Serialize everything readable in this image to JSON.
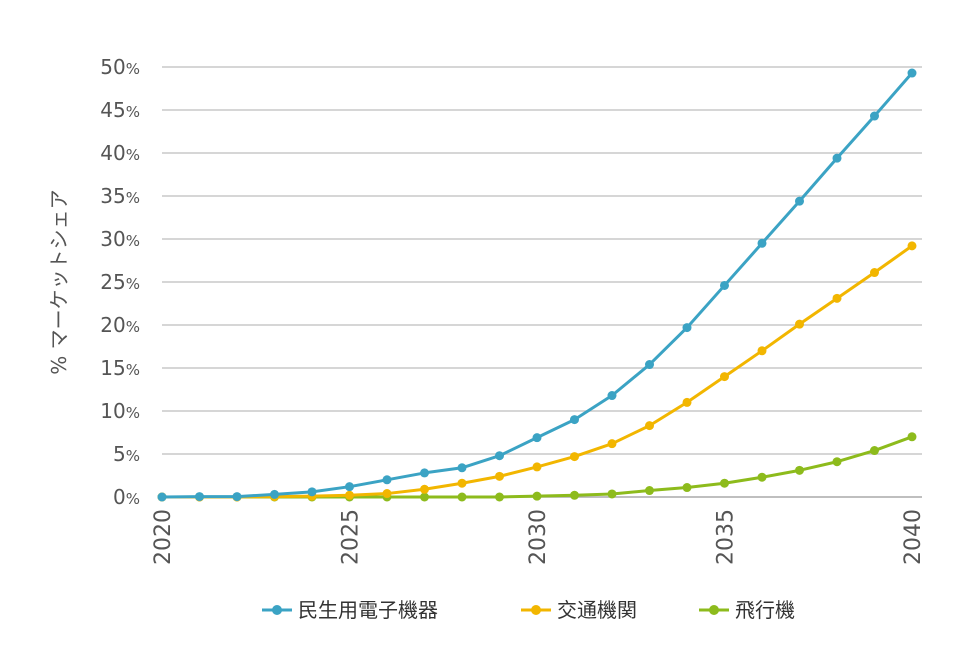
{
  "chart_data": {
    "type": "line",
    "title": "",
    "xlabel": "",
    "ylabel": "% マーケットシェア",
    "x": [
      2020,
      2021,
      2022,
      2023,
      2024,
      2025,
      2026,
      2027,
      2028,
      2029,
      2030,
      2031,
      2032,
      2033,
      2034,
      2035,
      2036,
      2037,
      2038,
      2039,
      2040
    ],
    "xticks": [
      "2020",
      "2025",
      "2030",
      "2035",
      "2040"
    ],
    "xlim": [
      2020,
      2040
    ],
    "yticks": [
      "0%",
      "5%",
      "10%",
      "15%",
      "20%",
      "25%",
      "30%",
      "35%",
      "40%",
      "45%",
      "50%"
    ],
    "ylim": [
      0,
      50
    ],
    "grid": true,
    "legend_position": "bottom",
    "series": [
      {
        "name": "民生用電子機器",
        "color": "#3ba3c4",
        "values": [
          0.0,
          0.05,
          0.05,
          0.3,
          0.6,
          1.2,
          2.0,
          2.8,
          3.4,
          4.8,
          6.9,
          9.0,
          11.8,
          15.4,
          19.7,
          24.6,
          29.5,
          34.4,
          39.4,
          44.3,
          49.3
        ]
      },
      {
        "name": "交通機関",
        "color": "#f2b600",
        "values": [
          0.0,
          0.0,
          0.0,
          0.05,
          0.1,
          0.2,
          0.4,
          0.9,
          1.6,
          2.4,
          3.5,
          4.7,
          6.2,
          8.3,
          11.0,
          14.0,
          17.0,
          20.1,
          23.1,
          26.1,
          29.2
        ]
      },
      {
        "name": "飛行機",
        "color": "#8dbb1c",
        "values": [
          0.0,
          0.0,
          0.0,
          0.0,
          0.0,
          0.0,
          0.0,
          0.0,
          0.0,
          0.0,
          0.1,
          0.2,
          0.35,
          0.75,
          1.1,
          1.6,
          2.3,
          3.1,
          4.1,
          5.4,
          7.0
        ]
      }
    ]
  }
}
